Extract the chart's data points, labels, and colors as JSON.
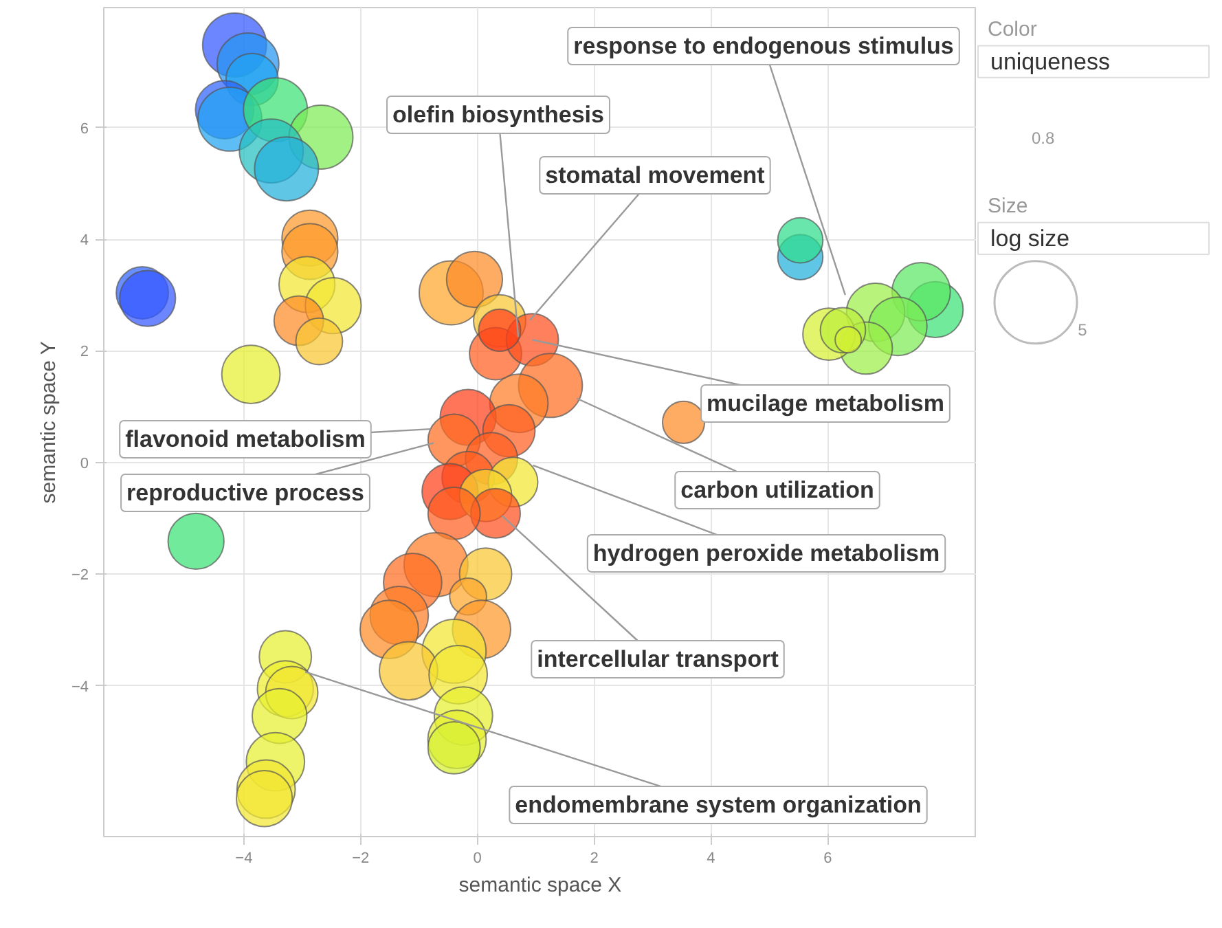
{
  "chart_data": {
    "type": "bubble",
    "xlabel": "semantic space X",
    "ylabel": "semantic space Y",
    "clabel": "uniqueness",
    "xlim": [
      -6.4,
      8.55
    ],
    "ylim": [
      -6.7,
      8.15
    ],
    "xticks": [
      -4,
      -2,
      0,
      2,
      4,
      6
    ],
    "yticks": [
      -4,
      -2,
      0,
      2,
      4,
      6
    ],
    "grid": true,
    "size_legend": [
      5
    ],
    "x": [
      -4.16,
      -3.93,
      -3.86,
      -4.33,
      -4.24,
      -3.46,
      -2.68,
      -3.53,
      -3.27,
      -5.74,
      -5.65,
      -2.87,
      -2.87,
      -2.92,
      -2.47,
      -3.06,
      -2.71,
      -3.88,
      -4.82,
      -3.29,
      -3.29,
      -3.18,
      -3.39,
      -3.46,
      -3.62,
      -3.65,
      -0.45,
      -0.05,
      0.38,
      0.31,
      0.94,
      0.38,
      1.25,
      0.71,
      -0.16,
      0.54,
      -0.4,
      0.24,
      -0.16,
      0.61,
      -0.47,
      0.14,
      0.31,
      -0.4,
      -0.71,
      -1.11,
      0.14,
      -0.16,
      -1.34,
      -1.51,
      0.07,
      -0.4,
      -1.18,
      -0.33,
      -0.24,
      -0.35,
      -0.4,
      3.53,
      5.53,
      5.53,
      7.84,
      7.6,
      6.82,
      7.2,
      6.66,
      6.02,
      6.26,
      6.35
    ],
    "values": [
      7.48,
      7.14,
      6.86,
      6.32,
      6.15,
      6.32,
      5.83,
      5.58,
      5.26,
      3.04,
      2.94,
      4.02,
      3.78,
      3.19,
      2.81,
      2.54,
      2.17,
      1.58,
      -1.41,
      -3.48,
      -4.05,
      -4.12,
      -4.54,
      -5.36,
      -5.85,
      -6.02,
      3.04,
      3.28,
      2.54,
      1.95,
      2.2,
      2.37,
      1.38,
      1.06,
      0.81,
      0.57,
      0.4,
      0.07,
      -0.27,
      -0.35,
      -0.52,
      -0.59,
      -0.91,
      -0.91,
      -1.83,
      -2.15,
      -2.0,
      -2.4,
      -2.74,
      -2.99,
      -2.99,
      -3.38,
      -3.73,
      -3.8,
      -4.54,
      -4.96,
      -5.11,
      0.72,
      3.68,
      3.98,
      2.74,
      3.06,
      2.69,
      2.44,
      2.05,
      2.3,
      2.37,
      2.2
    ],
    "colors": [
      "#3358ff",
      "#2596f3",
      "#21a3f1",
      "#2f62fc",
      "#21a3f1",
      "#3ae274",
      "#7deb55",
      "#26bfc0",
      "#22b0dc",
      "#2f62fc",
      "#3358ff",
      "#fe9a2b",
      "#fe9a2b",
      "#f2e632",
      "#f2e632",
      "#fe8b28",
      "#f9c832",
      "#e6f02f",
      "#3ae274",
      "#e6f02f",
      "#eeee30",
      "#f2e632",
      "#e6f02f",
      "#e6f02f",
      "#f2e632",
      "#f2e632",
      "#fda62d",
      "#fe8b28",
      "#f9c832",
      "#ff5e20",
      "#ff4f1d",
      "#ff401b",
      "#ff6d22",
      "#ff7d25",
      "#ff401b",
      "#ff5e20",
      "#ff6d22",
      "#ff5e20",
      "#ff5e20",
      "#f2e632",
      "#ff401b",
      "#f6d832",
      "#ff4f1d",
      "#ff5e20",
      "#ff7d25",
      "#ff6d22",
      "#f9c832",
      "#fda62d",
      "#ff7d25",
      "#fe8b28",
      "#fe9a2b",
      "#f2e632",
      "#f9c832",
      "#f2e632",
      "#e6f02f",
      "#e6f02f",
      "#d5f033",
      "#fe8b28",
      "#22b0dc",
      "#2fdc8c",
      "#3ae274",
      "#5be764",
      "#9dee48",
      "#7deb55",
      "#9dee48",
      "#d5f033",
      "#bdef3c",
      "#d5f033"
    ],
    "sizes": [
      3.0,
      2.8,
      2.0,
      2.5,
      3.0,
      3.0,
      3.0,
      3.0,
      3.0,
      2.0,
      2.3,
      2.3,
      2.3,
      2.3,
      2.3,
      1.8,
      1.6,
      2.5,
      2.3,
      2.0,
      2.3,
      2.0,
      2.2,
      2.5,
      2.5,
      2.3,
      3.0,
      2.3,
      2.0,
      2.0,
      2.0,
      1.3,
      3.0,
      2.5,
      2.3,
      2.0,
      2.0,
      2.0,
      2.0,
      1.8,
      2.3,
      2.0,
      1.8,
      2.0,
      3.0,
      2.5,
      2.0,
      1.0,
      2.5,
      2.5,
      2.5,
      3.0,
      2.5,
      2.5,
      2.5,
      2.5,
      2.0,
      1.3,
      1.5,
      1.5,
      2.3,
      2.5,
      2.5,
      2.5,
      2.0,
      2.0,
      1.5,
      0.5
    ],
    "annotations": [
      {
        "text": "response to endogenous stimulus",
        "x": 6.3,
        "y": 3.0
      },
      {
        "text": "olefin biosynthesis",
        "x": 0.7,
        "y": 2.25
      },
      {
        "text": "stomatal movement",
        "x": 0.9,
        "y": 2.55
      },
      {
        "text": "mucilage metabolism",
        "x": 0.94,
        "y": 2.2
      },
      {
        "text": "flavonoid metabolism",
        "x": -0.8,
        "y": 0.6
      },
      {
        "text": "reproductive process",
        "x": -0.75,
        "y": 0.35
      },
      {
        "text": "carbon utilization",
        "x": 1.7,
        "y": 1.15
      },
      {
        "text": "hydrogen peroxide metabolism",
        "x": 0.95,
        "y": -0.05
      },
      {
        "text": "intercellular transport",
        "x": 0.42,
        "y": -0.95
      },
      {
        "text": "endomembrane system organization",
        "x": -2.95,
        "y": -3.75
      },
      "Color",
      "Size",
      "log size",
      "0.8"
    ]
  }
}
